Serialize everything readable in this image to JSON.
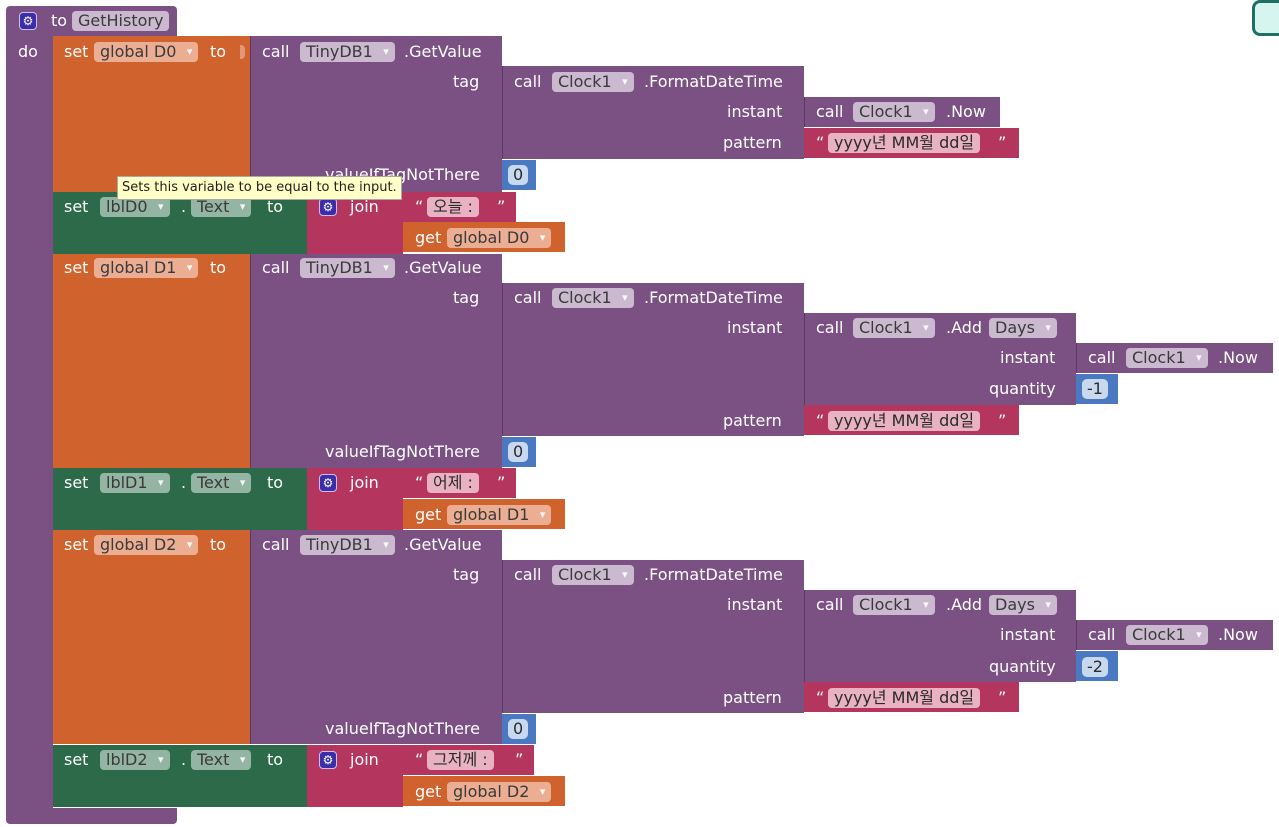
{
  "procedure": {
    "to": "to",
    "name": "GetHistory",
    "do": "do"
  },
  "kw": {
    "set": "set",
    "to": "to",
    "call": "call",
    "get": "get",
    "join": "join",
    "getvalue": ".GetValue",
    "formatdatetime": ".FormatDateTime",
    "now": ".Now",
    "add": ".Add",
    "tag": "tag",
    "instant": "instant",
    "pattern": "pattern",
    "quantity": "quantity",
    "valueIfTagNotThere": "valueIfTagNotThere",
    "dot": "."
  },
  "components": {
    "tinydb": "TinyDB1",
    "clock": "Clock1",
    "days": "Days",
    "text_prop": "Text"
  },
  "pattern": "yyyy년 MM월 dd일",
  "quote_open": "“",
  "quote_close": "”",
  "tooltip": "Sets this variable to be equal to the input.",
  "sections": [
    {
      "var": "global D0",
      "label": "lblD0",
      "join_text": "오늘 : ",
      "default_value": "0",
      "quantity": null
    },
    {
      "var": "global D1",
      "label": "lblD1",
      "join_text": "어제 : ",
      "default_value": "0",
      "quantity": "-1"
    },
    {
      "var": "global D2",
      "label": "lblD2",
      "join_text": "그저께 : ",
      "default_value": "0",
      "quantity": "-2"
    }
  ]
}
